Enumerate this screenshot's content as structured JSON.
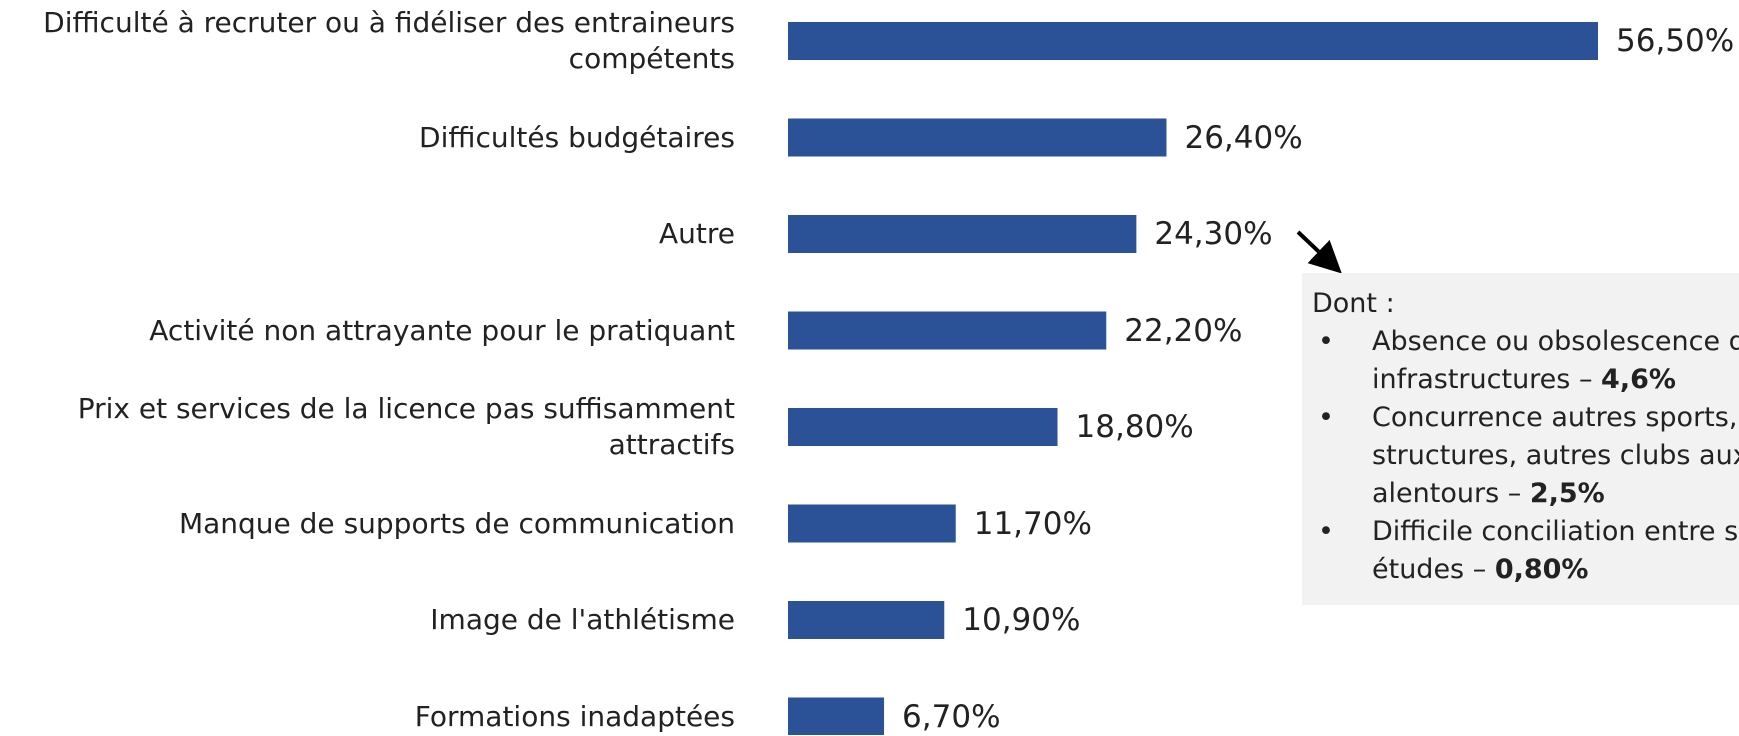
{
  "chart_data": {
    "type": "barh",
    "categories": [
      "Difficulté à recruter ou à fidéliser des entraineurs compétents",
      "Difficultés budgétaires",
      "Autre",
      "Activité non attrayante pour le pratiquant",
      "Prix et services de la licence pas suffisamment attractifs",
      "Manque de supports de communication",
      "Image de l'athlétisme",
      "Formations inadaptées"
    ],
    "values": [
      56.5,
      26.4,
      24.3,
      22.2,
      18.8,
      11.7,
      10.9,
      6.7
    ],
    "value_labels": [
      "56,50%",
      "26,40%",
      "24,30%",
      "22,20%",
      "18,80%",
      "11,70%",
      "10,90%",
      "6,70%"
    ],
    "color": "#2b5197",
    "annotation": {
      "heading": "Dont :",
      "items": [
        {
          "text": "Absence ou obsolescence des infrastructures –",
          "value": "4,6%"
        },
        {
          "text": "Concurrence autres sports, autres structures, autres clubs aux alentours –",
          "value": "2,5%"
        },
        {
          "text": "Difficile conciliation entre sport et études –",
          "value": "0,80%"
        }
      ]
    }
  }
}
